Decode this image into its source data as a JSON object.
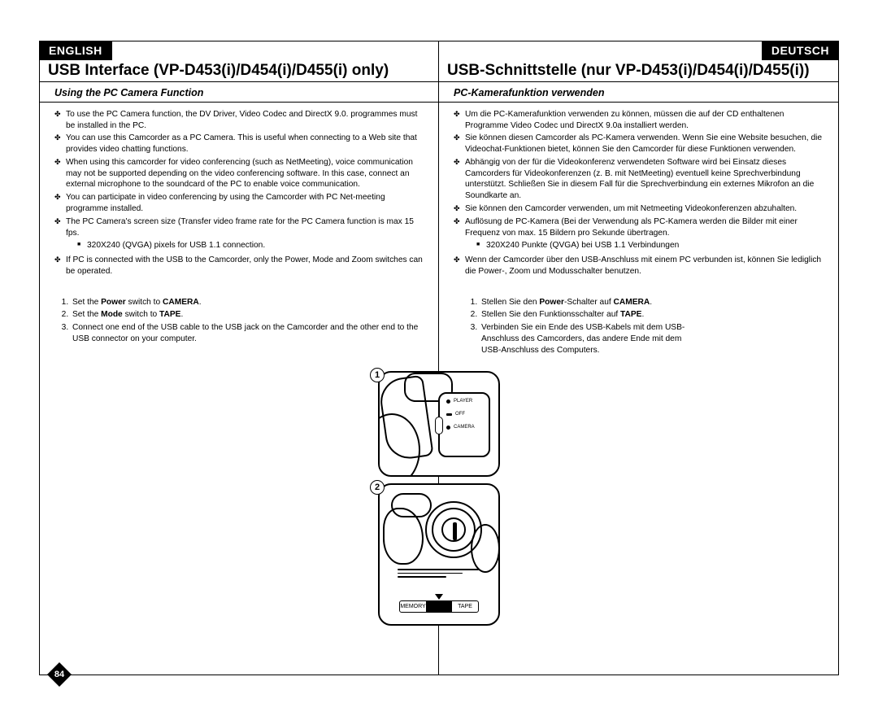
{
  "page_number": "84",
  "left": {
    "lang": "ENGLISH",
    "title": "USB Interface (VP-D453(i)/D454(i)/D455(i) only)",
    "subtitle": "Using the PC Camera Function",
    "bullets": [
      "To use the PC Camera function, the DV Driver, Video Codec and DirectX 9.0. programmes must be installed in the PC.",
      "You can use this Camcorder as a PC Camera. This is useful when connecting to a Web site that provides video chatting functions.",
      "When using this camcorder for video conferencing (such as NetMeeting), voice communication may not be supported depending on the video conferencing software. In this case, connect an external microphone to the soundcard of the PC to enable voice communication.",
      "You can participate in video conferencing by using the Camcorder with PC Net-meeting programme installed.",
      "The PC Camera's screen size (Transfer video frame rate for the PC Camera function is max 15 fps.",
      "If PC is connected with the USB to the Camcorder, only the Power, Mode and Zoom switches can be operated."
    ],
    "subbullet": "320X240 (QVGA) pixels for USB 1.1 connection.",
    "steps": [
      "Set the <b>Power</b> switch to <b>CAMERA</b>.",
      "Set the <b>Mode</b> switch to <b>TAPE</b>.",
      "Connect one end of the USB cable to the USB jack on the Camcorder and the other end to the USB connector on your computer."
    ]
  },
  "right": {
    "lang": "DEUTSCH",
    "title": "USB-Schnittstelle (nur VP-D453(i)/D454(i)/D455(i))",
    "subtitle": "PC-Kamerafunktion verwenden",
    "bullets": [
      "Um die PC-Kamerafunktion verwenden zu können, müssen die auf der CD enthaltenen Programme Video Codec und DirectX 9.0a installiert werden.",
      "Sie können diesen Camcorder als PC-Kamera verwenden. Wenn Sie eine Website besuchen, die Videochat-Funktionen bietet, können Sie den Camcorder für diese Funktionen verwenden.",
      "Abhängig von der für die Videokonferenz verwendeten Software wird bei Einsatz dieses Camcorders für Videokonferenzen (z. B. mit NetMeeting) eventuell keine Sprechverbindung unterstützt. Schließen Sie in diesem Fall für die Sprechverbindung ein externes Mikrofon an die Soundkarte an.",
      "Sie können den Camcorder verwenden, um mit Netmeeting Videokonferenzen abzuhalten.",
      "Auflösung de PC-Kamera (Bei der Verwendung als PC-Kamera werden die Bilder mit einer Frequenz von max. 15 Bildern pro Sekunde übertragen.",
      "Wenn der Camcorder über den USB-Anschluss mit einem PC verbunden ist, können Sie lediglich die Power-, Zoom und Modusschalter benutzen."
    ],
    "subbullet": "320X240 Punkte (QVGA) bei USB 1.1 Verbindungen",
    "steps": [
      "Stellen Sie den <b>Power</b>-Schalter auf <b>CAMERA</b>.",
      "Stellen Sie den Funktionsschalter auf <b>TAPE</b>.",
      "Verbinden Sie ein Ende des USB-Kabels mit dem USB-Anschluss des Camcorders, das andere Ende mit dem USB-Anschluss des Computers."
    ]
  },
  "diagram1": {
    "labels": [
      "PLAYER",
      "OFF",
      "CAMERA"
    ]
  },
  "diagram2": {
    "left_label": "MEMORY",
    "right_label": "TAPE"
  }
}
